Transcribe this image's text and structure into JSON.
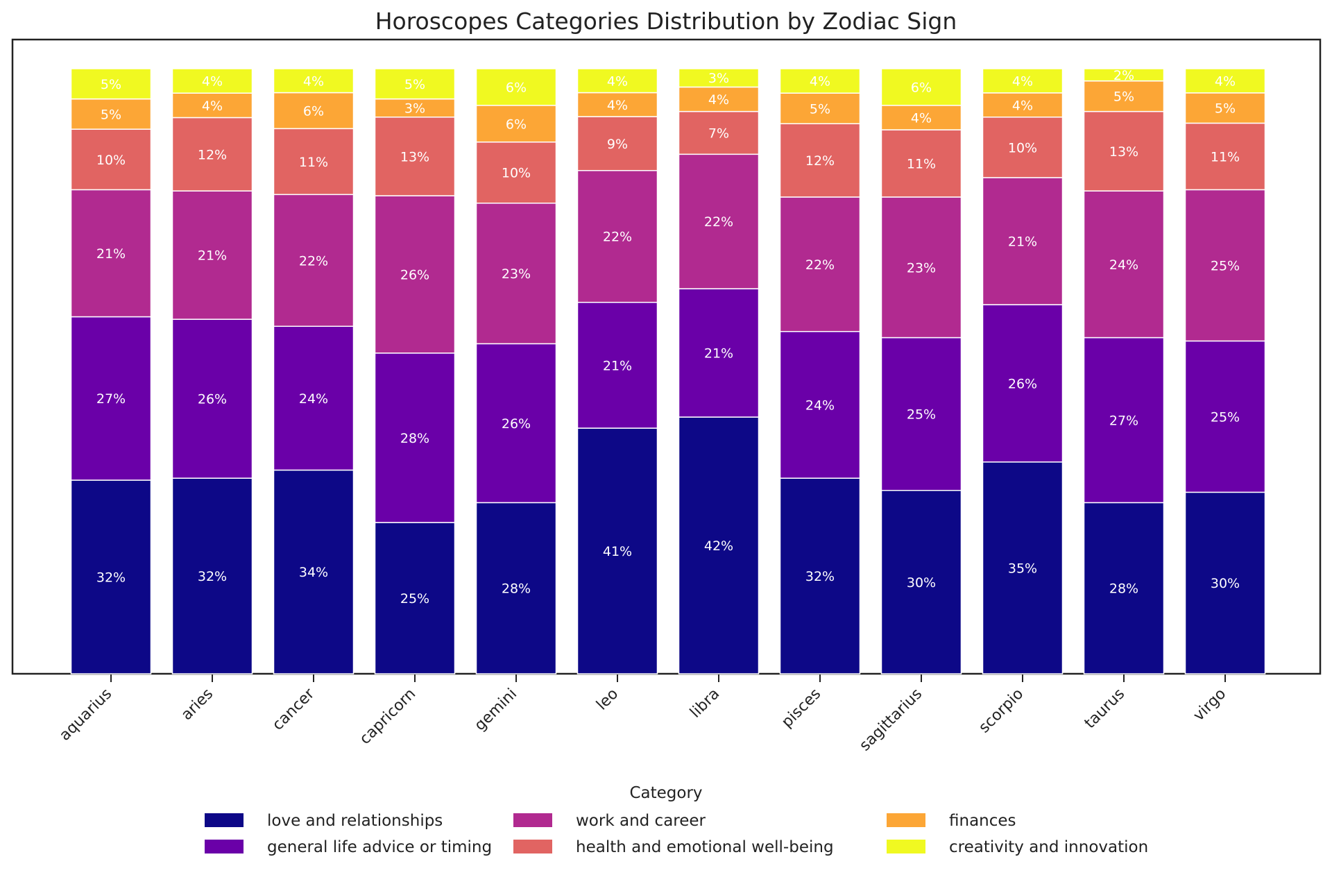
{
  "chart_data": {
    "type": "bar",
    "stacked": true,
    "title": "Horoscopes Categories Distribution by Zodiac Sign",
    "xlabel": "",
    "ylabel": "",
    "ylim": [
      0,
      100
    ],
    "legend_title": "Category",
    "legend_position": "bottom-center",
    "categories": [
      "aquarius",
      "aries",
      "cancer",
      "capricorn",
      "gemini",
      "leo",
      "libra",
      "pisces",
      "sagittarius",
      "scorpio",
      "taurus",
      "virgo"
    ],
    "series": [
      {
        "name": "love and relationships",
        "color": "#0d0887",
        "values": [
          32,
          32,
          34,
          25,
          28,
          41,
          42,
          32,
          30,
          35,
          28,
          30
        ]
      },
      {
        "name": "general life advice or timing",
        "color": "#6a00a8",
        "values": [
          27,
          26,
          24,
          28,
          26,
          21,
          21,
          24,
          25,
          26,
          27,
          25
        ]
      },
      {
        "name": "work and career",
        "color": "#b12a90",
        "values": [
          21,
          21,
          22,
          26,
          23,
          22,
          22,
          22,
          23,
          21,
          24,
          25
        ]
      },
      {
        "name": "health and emotional well-being",
        "color": "#e16462",
        "values": [
          10,
          12,
          11,
          13,
          10,
          9,
          7,
          12,
          11,
          10,
          13,
          11
        ]
      },
      {
        "name": "finances",
        "color": "#fca636",
        "values": [
          5,
          4,
          6,
          3,
          6,
          4,
          4,
          5,
          4,
          4,
          5,
          5
        ]
      },
      {
        "name": "creativity and innovation",
        "color": "#f0f921",
        "values": [
          5,
          4,
          4,
          5,
          6,
          4,
          3,
          4,
          6,
          4,
          2,
          4
        ]
      }
    ]
  }
}
